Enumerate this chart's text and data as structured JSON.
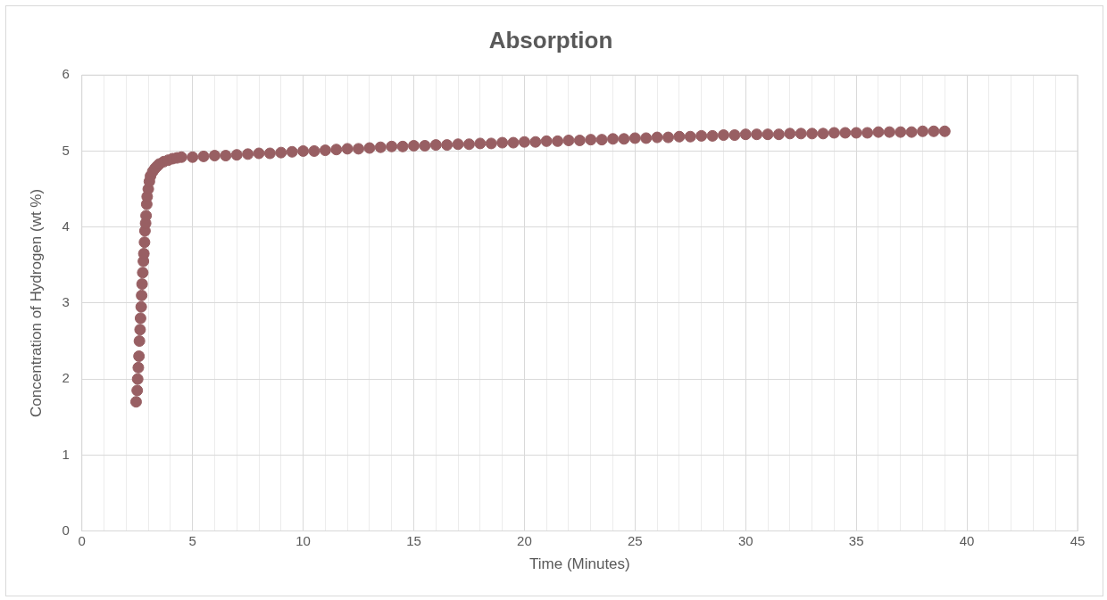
{
  "chart_data": {
    "type": "scatter",
    "title": "Absorption",
    "xlabel": "Time (Minutes)",
    "ylabel": "Concentration of Hydrogen (wt %)",
    "marker": "circle",
    "grid": true,
    "xlim": [
      0,
      45
    ],
    "ylim": [
      0,
      6
    ],
    "xticks": [
      0,
      {
        "value": 1,
        "label": null
      },
      {
        "value": 2,
        "label": null
      },
      {
        "value": 3,
        "label": null
      },
      {
        "value": 4,
        "label": null
      },
      5,
      {
        "value": 6,
        "label": null
      },
      {
        "value": 7,
        "label": null
      },
      {
        "value": 8,
        "label": null
      },
      {
        "value": 9,
        "label": null
      },
      10,
      {
        "value": 11,
        "label": null
      },
      {
        "value": 12,
        "label": null
      },
      {
        "value": 13,
        "label": null
      },
      {
        "value": 14,
        "label": null
      },
      15,
      {
        "value": 16,
        "label": null
      },
      {
        "value": 17,
        "label": null
      },
      {
        "value": 18,
        "label": null
      },
      {
        "value": 19,
        "label": null
      },
      20,
      {
        "value": 21,
        "label": null
      },
      {
        "value": 22,
        "label": null
      },
      {
        "value": 23,
        "label": null
      },
      {
        "value": 24,
        "label": null
      },
      25,
      {
        "value": 26,
        "label": null
      },
      {
        "value": 27,
        "label": null
      },
      {
        "value": 28,
        "label": null
      },
      {
        "value": 29,
        "label": null
      },
      30,
      {
        "value": 31,
        "label": null
      },
      {
        "value": 32,
        "label": null
      },
      {
        "value": 33,
        "label": null
      },
      {
        "value": 34,
        "label": null
      },
      35,
      {
        "value": 36,
        "label": null
      },
      {
        "value": 37,
        "label": null
      },
      {
        "value": 38,
        "label": null
      },
      {
        "value": 39,
        "label": null
      },
      40,
      {
        "value": 41,
        "label": null
      },
      {
        "value": 42,
        "label": null
      },
      {
        "value": 43,
        "label": null
      },
      {
        "value": 44,
        "label": null
      },
      45
    ],
    "yticks": [
      0,
      1,
      2,
      3,
      4,
      5,
      6
    ],
    "series": [
      {
        "color": "#985f63",
        "x": [
          2.45,
          2.5,
          2.52,
          2.55,
          2.58,
          2.6,
          2.63,
          2.65,
          2.68,
          2.7,
          2.72,
          2.75,
          2.78,
          2.8,
          2.83,
          2.85,
          2.88,
          2.9,
          2.93,
          2.95,
          3.0,
          3.05,
          3.1,
          3.2,
          3.3,
          3.4,
          3.5,
          3.7,
          3.9,
          4.1,
          4.3,
          4.5,
          5,
          5.5,
          6,
          6.5,
          7,
          7.5,
          8,
          8.5,
          9,
          9.5,
          10,
          10.5,
          11,
          11.5,
          12,
          12.5,
          13,
          13.5,
          14,
          14.5,
          15,
          15.5,
          16,
          16.5,
          17,
          17.5,
          18,
          18.5,
          19,
          19.5,
          20,
          20.5,
          21,
          21.5,
          22,
          22.5,
          23,
          23.5,
          24,
          24.5,
          25,
          25.5,
          26,
          26.5,
          27,
          27.5,
          28,
          28.5,
          29,
          29.5,
          30,
          30.5,
          31,
          31.5,
          32,
          32.5,
          33,
          33.5,
          34,
          34.5,
          35,
          35.5,
          36,
          36.5,
          37,
          37.5,
          38,
          38.5,
          39
        ],
        "values": [
          1.7,
          1.85,
          2.0,
          2.15,
          2.3,
          2.5,
          2.65,
          2.8,
          2.95,
          3.1,
          3.25,
          3.4,
          3.55,
          3.65,
          3.8,
          3.95,
          4.05,
          4.15,
          4.3,
          4.4,
          4.5,
          4.6,
          4.67,
          4.73,
          4.77,
          4.8,
          4.83,
          4.86,
          4.88,
          4.9,
          4.91,
          4.92,
          4.92,
          4.93,
          4.94,
          4.94,
          4.95,
          4.96,
          4.97,
          4.97,
          4.98,
          4.99,
          5.0,
          5.0,
          5.01,
          5.02,
          5.03,
          5.03,
          5.04,
          5.05,
          5.06,
          5.06,
          5.07,
          5.07,
          5.08,
          5.08,
          5.09,
          5.09,
          5.1,
          5.1,
          5.11,
          5.11,
          5.12,
          5.12,
          5.13,
          5.13,
          5.14,
          5.14,
          5.15,
          5.15,
          5.16,
          5.16,
          5.17,
          5.17,
          5.18,
          5.18,
          5.19,
          5.19,
          5.2,
          5.2,
          5.21,
          5.21,
          5.22,
          5.22,
          5.22,
          5.22,
          5.23,
          5.23,
          5.23,
          5.23,
          5.24,
          5.24,
          5.24,
          5.24,
          5.25,
          5.25,
          5.25,
          5.25,
          5.26,
          5.26,
          5.26
        ]
      }
    ]
  }
}
